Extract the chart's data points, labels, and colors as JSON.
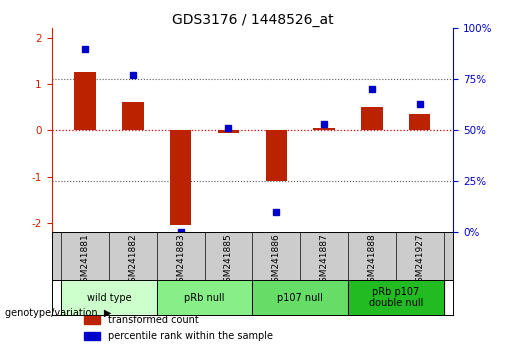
{
  "title": "GDS3176 / 1448526_at",
  "samples": [
    "GSM241881",
    "GSM241882",
    "GSM241883",
    "GSM241885",
    "GSM241886",
    "GSM241887",
    "GSM241888",
    "GSM241927"
  ],
  "red_bars": [
    1.25,
    0.6,
    -2.05,
    -0.05,
    -1.1,
    0.05,
    0.5,
    0.35
  ],
  "blue_dots": [
    90,
    77,
    0,
    51,
    10,
    53,
    70,
    63
  ],
  "groups": [
    {
      "label": "wild type",
      "start": 0,
      "end": 1,
      "color": "#ccffcc"
    },
    {
      "label": "pRb null",
      "start": 2,
      "end": 3,
      "color": "#88ee88"
    },
    {
      "label": "p107 null",
      "start": 4,
      "end": 5,
      "color": "#66dd66"
    },
    {
      "label": "pRb p107\ndouble null",
      "start": 6,
      "end": 7,
      "color": "#22bb22"
    }
  ],
  "ylim_left": [
    -2.2,
    2.2
  ],
  "ylim_right": [
    -2.2,
    2.2
  ],
  "bar_color": "#bb2200",
  "dot_color": "#0000cc",
  "zero_line_color": "#dd0000",
  "dotted_line_color": "#555555",
  "bg_plot": "#ffffff",
  "bg_figure": "#ffffff",
  "bg_sample_labels": "#cccccc",
  "left_axis_color": "#cc2200",
  "right_axis_color": "#0000cc",
  "legend_red_label": "transformed count",
  "legend_blue_label": "percentile rank within the sample",
  "title_fontsize": 10,
  "tick_fontsize": 7.5,
  "bar_width": 0.45
}
